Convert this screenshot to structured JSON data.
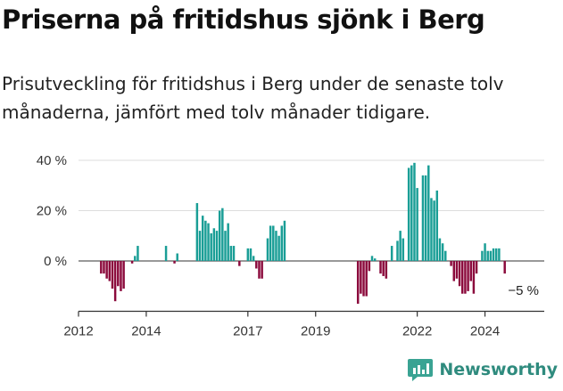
{
  "title": "Priserna på fritidshus sjönk i Berg",
  "subtitle": "Prisutveckling för fritidshus i Berg under de senaste tolv månaderna, jämfört med tolv månader tidigare.",
  "brand": "Newsworthy",
  "colors": {
    "positive": "#1a9e96",
    "negative": "#8b0a3c",
    "axis": "#333333",
    "grid": "#dddddd"
  },
  "chart_data": {
    "type": "bar",
    "ylim": [
      -20,
      40
    ],
    "yticks": [
      0,
      20,
      40
    ],
    "ytick_labels": [
      "0 %",
      "20 %",
      "40 %"
    ],
    "xlim": [
      2012.0,
      2025.75
    ],
    "xticks": [
      2012,
      2014,
      2017,
      2019,
      2022,
      2024
    ],
    "xtick_labels": [
      "2012",
      "2014",
      "2017",
      "2019",
      "2022",
      "2024"
    ],
    "grid": true,
    "annotation": "−5 %",
    "dates": [
      "2012-09",
      "2012-10",
      "2012-11",
      "2012-12",
      "2013-01",
      "2013-02",
      "2013-03",
      "2013-04",
      "2013-05",
      "2013-06",
      "2013-07",
      "2013-08",
      "2013-09",
      "2013-10",
      "2013-11",
      "2013-12",
      "2014-01",
      "2014-02",
      "2014-03",
      "2014-04",
      "2014-05",
      "2014-06",
      "2014-07",
      "2014-08",
      "2014-09",
      "2014-10",
      "2014-11",
      "2014-12",
      "2015-01",
      "2015-02",
      "2015-03",
      "2015-04",
      "2015-05",
      "2015-06",
      "2015-07",
      "2015-08",
      "2015-09",
      "2015-10",
      "2015-11",
      "2015-12",
      "2016-01",
      "2016-02",
      "2016-03",
      "2016-04",
      "2016-05",
      "2016-06",
      "2016-07",
      "2016-08",
      "2016-09",
      "2016-10",
      "2016-11",
      "2016-12",
      "2017-01",
      "2017-02",
      "2017-03",
      "2017-04",
      "2017-05",
      "2017-06",
      "2017-07",
      "2017-08",
      "2017-09",
      "2017-10",
      "2017-11",
      "2017-12",
      "2018-01",
      "2018-02",
      "2018-03",
      "2018-04",
      "2018-05",
      "2018-06",
      "2018-07",
      "2018-08",
      "2018-09",
      "2018-10",
      "2018-11",
      "2018-12",
      "2019-01",
      "2019-02",
      "2019-03",
      "2019-04",
      "2019-05",
      "2019-06",
      "2019-07",
      "2019-08",
      "2019-09",
      "2019-10",
      "2019-11",
      "2019-12",
      "2020-01",
      "2020-02",
      "2020-03",
      "2020-04",
      "2020-05",
      "2020-06",
      "2020-07",
      "2020-08",
      "2020-09",
      "2020-10",
      "2020-11",
      "2020-12",
      "2021-01",
      "2021-02",
      "2021-03",
      "2021-04",
      "2021-05",
      "2021-06",
      "2021-07",
      "2021-08",
      "2021-09",
      "2021-10",
      "2021-11",
      "2021-12",
      "2022-01",
      "2022-02",
      "2022-03",
      "2022-04",
      "2022-05",
      "2022-06",
      "2022-07",
      "2022-08",
      "2022-09",
      "2022-10",
      "2022-11",
      "2022-12",
      "2023-01",
      "2023-02",
      "2023-03",
      "2023-04",
      "2023-05",
      "2023-06",
      "2023-07",
      "2023-08",
      "2023-09",
      "2023-10",
      "2023-11",
      "2023-12",
      "2024-01",
      "2024-02",
      "2024-03",
      "2024-04",
      "2024-05",
      "2024-06",
      "2024-07",
      "2024-08"
    ],
    "values": [
      -5,
      -5,
      -7,
      -8,
      -11,
      -16,
      -10,
      -12,
      -11,
      0,
      0,
      -1,
      2,
      6,
      0,
      0,
      0,
      0,
      0,
      0,
      0,
      0,
      0,
      6,
      0,
      0,
      -1,
      3,
      0,
      0,
      0,
      0,
      0,
      0,
      23,
      12,
      18,
      16,
      15,
      11,
      13,
      12,
      20,
      21,
      12,
      15,
      6,
      6,
      0,
      -2,
      0,
      0,
      5,
      5,
      2,
      -3,
      -7,
      -7,
      0,
      9,
      14,
      14,
      12,
      10,
      14,
      16,
      0,
      0,
      0,
      0,
      0,
      0,
      0,
      0,
      0,
      0,
      0,
      0,
      0,
      0,
      0,
      0,
      0,
      0,
      0,
      0,
      0,
      0,
      0,
      0,
      0,
      -17,
      -13,
      -14,
      -14,
      -4,
      2,
      1,
      0,
      -5,
      -6,
      -7,
      0,
      6,
      0,
      8,
      12,
      9,
      0,
      37,
      38,
      39,
      29,
      0,
      34,
      34,
      38,
      25,
      24,
      28,
      9,
      7,
      4,
      0,
      -2,
      -8,
      -7,
      -10,
      -13,
      -13,
      -12,
      -8,
      -13,
      -5,
      0,
      4,
      7,
      4,
      4,
      5,
      5,
      5,
      0,
      -5
    ]
  }
}
